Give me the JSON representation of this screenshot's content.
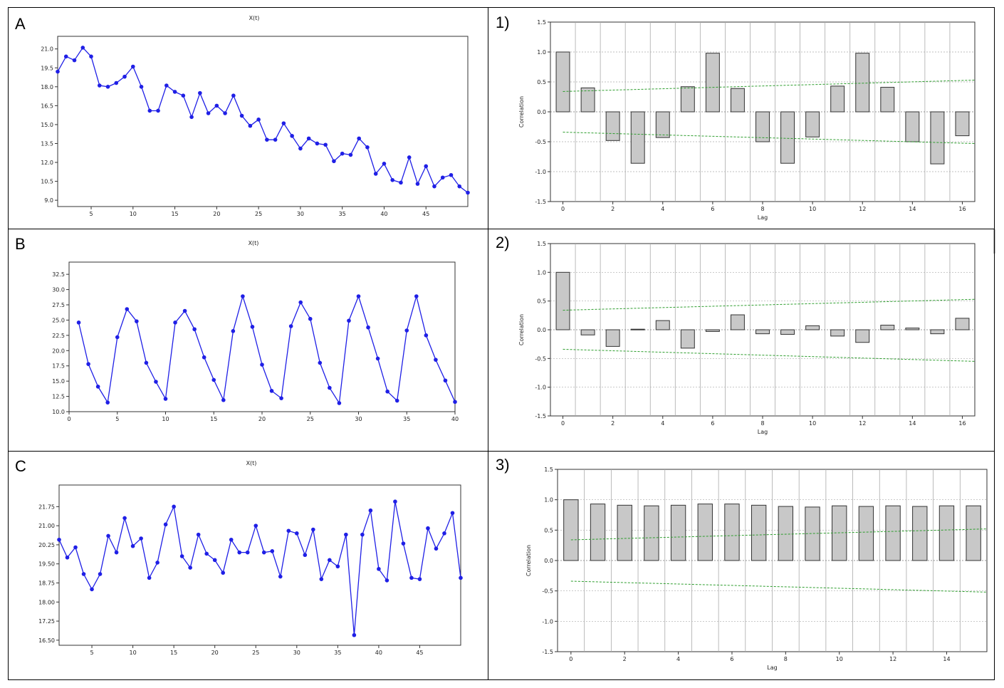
{
  "panels": [
    {
      "id": "A",
      "label": "A"
    },
    {
      "id": "B",
      "label": "B"
    },
    {
      "id": "C",
      "label": "C"
    },
    {
      "id": "p1",
      "label": "1)"
    },
    {
      "id": "p2",
      "label": "2)"
    },
    {
      "id": "p3",
      "label": "3)"
    }
  ],
  "colors": {
    "series": "#1f1fe6",
    "bar": "#c8c8c8",
    "band": "#2e9e2e",
    "grid": "#aaaaaa",
    "frame": "#000000"
  },
  "chart_data": [
    {
      "id": "A",
      "type": "line",
      "title": "X(t)",
      "xlabel": "",
      "ylabel": "",
      "xlim": [
        1,
        50
      ],
      "ylim": [
        8.5,
        22.0
      ],
      "xticks": [
        5,
        10,
        15,
        20,
        25,
        30,
        35,
        40,
        45
      ],
      "yticks": [
        9.0,
        10.5,
        12.0,
        13.5,
        15.0,
        16.5,
        18.0,
        19.5,
        21.0
      ],
      "ytick_labels": [
        "9.0",
        "10.5",
        "12.0",
        "13.5",
        "15.0",
        "16.5",
        "18.0",
        "19.5",
        "21.0"
      ],
      "grid": false,
      "x": [
        1,
        2,
        3,
        4,
        5,
        6,
        7,
        8,
        9,
        10,
        11,
        12,
        13,
        14,
        15,
        16,
        17,
        18,
        19,
        20,
        21,
        22,
        23,
        24,
        25,
        26,
        27,
        28,
        29,
        30,
        31,
        32,
        33,
        34,
        35,
        36,
        37,
        38,
        39,
        40,
        41,
        42,
        43,
        44,
        45,
        46,
        47,
        48,
        49,
        50
      ],
      "series": [
        {
          "values": [
            19.2,
            20.4,
            20.1,
            21.1,
            20.4,
            18.1,
            18.0,
            18.3,
            18.8,
            19.6,
            18.0,
            16.1,
            16.1,
            18.1,
            17.6,
            17.3,
            15.6,
            17.5,
            15.9,
            16.5,
            15.9,
            17.3,
            15.7,
            14.9,
            15.4,
            13.8,
            13.8,
            15.1,
            14.1,
            13.1,
            13.9,
            13.5,
            13.4,
            12.1,
            12.7,
            12.6,
            13.9,
            13.2,
            11.1,
            11.9,
            10.6,
            10.4,
            12.4,
            10.3,
            11.7,
            10.1,
            10.8,
            11.0,
            10.1,
            9.6
          ]
        }
      ]
    },
    {
      "id": "B",
      "type": "line",
      "title": "X(t)",
      "xlabel": "",
      "ylabel": "",
      "xlim": [
        0,
        40
      ],
      "ylim": [
        10.0,
        34.5
      ],
      "xticks": [
        0,
        5,
        10,
        15,
        20,
        25,
        30,
        35,
        40
      ],
      "yticks": [
        10.0,
        12.5,
        15.0,
        17.5,
        20.0,
        22.5,
        25.0,
        27.5,
        30.0,
        32.5
      ],
      "ytick_labels": [
        "10.0",
        "12.5",
        "15.0",
        "17.5",
        "20.0",
        "22.5",
        "25.0",
        "27.5",
        "30.0",
        "32.5"
      ],
      "grid": false,
      "x": [
        1,
        2,
        3,
        4,
        5,
        6,
        7,
        8,
        9,
        10,
        11,
        12,
        13,
        14,
        15,
        16,
        17,
        18,
        19,
        20,
        21,
        22,
        23,
        24,
        25,
        26,
        27,
        28,
        29,
        30,
        31,
        32,
        33,
        34,
        35,
        36,
        37,
        38,
        39,
        40
      ],
      "series": [
        {
          "values": [
            24.6,
            17.8,
            14.1,
            11.5,
            22.2,
            26.8,
            24.8,
            18.0,
            14.9,
            12.1,
            24.6,
            26.5,
            23.5,
            18.9,
            15.2,
            11.9,
            23.2,
            28.9,
            23.9,
            17.7,
            13.4,
            12.2,
            24.0,
            27.9,
            25.2,
            18.0,
            13.9,
            11.4,
            24.9,
            28.9,
            23.8,
            18.7,
            13.3,
            11.8,
            23.3,
            28.9,
            22.5,
            18.5,
            15.1,
            11.6
          ]
        }
      ]
    },
    {
      "id": "C",
      "type": "line",
      "title": "X(t)",
      "xlabel": "",
      "ylabel": "",
      "xlim": [
        1,
        50
      ],
      "ylim": [
        16.3,
        22.6
      ],
      "xticks": [
        5,
        10,
        15,
        20,
        25,
        30,
        35,
        40,
        45
      ],
      "yticks": [
        16.5,
        17.25,
        18.0,
        18.75,
        19.5,
        20.25,
        21.0,
        21.75
      ],
      "ytick_labels": [
        "16.50",
        "17.25",
        "18.00",
        "18.75",
        "19.50",
        "20.25",
        "21.00",
        "21.75"
      ],
      "grid": false,
      "x": [
        1,
        2,
        3,
        4,
        5,
        6,
        7,
        8,
        9,
        10,
        11,
        12,
        13,
        14,
        15,
        16,
        17,
        18,
        19,
        20,
        21,
        22,
        23,
        24,
        25,
        26,
        27,
        28,
        29,
        30,
        31,
        32,
        33,
        34,
        35,
        36,
        37,
        38,
        39,
        40,
        41,
        42,
        43,
        44,
        45,
        46,
        47,
        48,
        49,
        50
      ],
      "series": [
        {
          "values": [
            20.45,
            19.75,
            20.15,
            19.1,
            18.5,
            19.1,
            20.6,
            19.95,
            21.3,
            20.2,
            20.5,
            18.95,
            19.55,
            21.05,
            21.75,
            19.8,
            19.35,
            20.65,
            19.9,
            19.65,
            19.15,
            20.45,
            19.95,
            19.95,
            21.0,
            19.95,
            20.0,
            19.0,
            20.8,
            20.7,
            19.85,
            20.85,
            18.9,
            19.65,
            19.4,
            20.65,
            16.7,
            20.65,
            21.6,
            19.3,
            18.85,
            21.95,
            20.3,
            18.95,
            18.9,
            20.9,
            20.1,
            20.7,
            21.5,
            18.95
          ]
        }
      ]
    },
    {
      "id": "p1",
      "type": "bar",
      "title": "",
      "xlabel": "Lag",
      "ylabel": "Correlation",
      "xlim": [
        -0.5,
        16.5
      ],
      "ylim": [
        -1.5,
        1.5
      ],
      "xticks": [
        0,
        2,
        4,
        6,
        8,
        10,
        12,
        14,
        16
      ],
      "yticks": [
        -1.5,
        -1.0,
        -0.5,
        0.0,
        0.5,
        1.0,
        1.5
      ],
      "ytick_labels": [
        "-1.5",
        "-1.0",
        "-0.5",
        "0.0",
        "0.5",
        "1.0",
        "1.5"
      ],
      "grid": true,
      "lags": [
        0,
        1,
        2,
        3,
        4,
        5,
        6,
        7,
        8,
        9,
        10,
        11,
        12,
        13,
        14,
        15,
        16
      ],
      "values": [
        1.0,
        0.4,
        -0.48,
        -0.86,
        -0.43,
        0.42,
        0.98,
        0.39,
        -0.5,
        -0.86,
        -0.42,
        0.43,
        0.98,
        0.41,
        -0.5,
        -0.87,
        -0.4
      ],
      "band_upper": [
        0.34,
        0.53
      ],
      "band_lower": [
        -0.34,
        -0.53
      ]
    },
    {
      "id": "p2",
      "type": "bar",
      "title": "",
      "xlabel": "Lag",
      "ylabel": "Correlation",
      "xlim": [
        -0.5,
        16.5
      ],
      "ylim": [
        -1.5,
        1.5
      ],
      "xticks": [
        0,
        2,
        4,
        6,
        8,
        10,
        12,
        14,
        16
      ],
      "yticks": [
        -1.5,
        -1.0,
        -0.5,
        0.0,
        0.5,
        1.0,
        1.5
      ],
      "ytick_labels": [
        "-1.5",
        "-1.0",
        "-0.5",
        "0.0",
        "0.5",
        "1.0",
        "1.5"
      ],
      "grid": true,
      "lags": [
        0,
        1,
        2,
        3,
        4,
        5,
        6,
        7,
        8,
        9,
        10,
        11,
        12,
        13,
        14,
        15,
        16
      ],
      "values": [
        1.0,
        -0.09,
        -0.29,
        0.01,
        0.16,
        -0.32,
        -0.03,
        0.26,
        -0.07,
        -0.08,
        0.07,
        -0.11,
        -0.22,
        0.08,
        0.03,
        -0.07,
        0.2
      ],
      "band_upper": [
        0.34,
        0.53
      ],
      "band_lower": [
        -0.34,
        -0.55
      ]
    },
    {
      "id": "p3",
      "type": "bar",
      "title": "",
      "xlabel": "Lag",
      "ylabel": "Correlation",
      "xlim": [
        -0.5,
        15.5
      ],
      "ylim": [
        -1.5,
        1.5
      ],
      "xticks": [
        0,
        2,
        4,
        6,
        8,
        10,
        12,
        14
      ],
      "yticks": [
        -1.5,
        -1.0,
        -0.5,
        0.0,
        0.5,
        1.0,
        1.5
      ],
      "ytick_labels": [
        "-1.5",
        "-1.0",
        "-0.5",
        "0.0",
        "0.5",
        "1.0",
        "1.5"
      ],
      "grid": true,
      "lags": [
        0,
        1,
        2,
        3,
        4,
        5,
        6,
        7,
        8,
        9,
        10,
        11,
        12,
        13,
        14,
        15
      ],
      "values": [
        1.0,
        0.93,
        0.91,
        0.9,
        0.91,
        0.93,
        0.93,
        0.91,
        0.89,
        0.88,
        0.9,
        0.89,
        0.9,
        0.89,
        0.9,
        0.9
      ],
      "band_upper": [
        0.34,
        0.52
      ],
      "band_lower": [
        -0.34,
        -0.52
      ]
    }
  ]
}
